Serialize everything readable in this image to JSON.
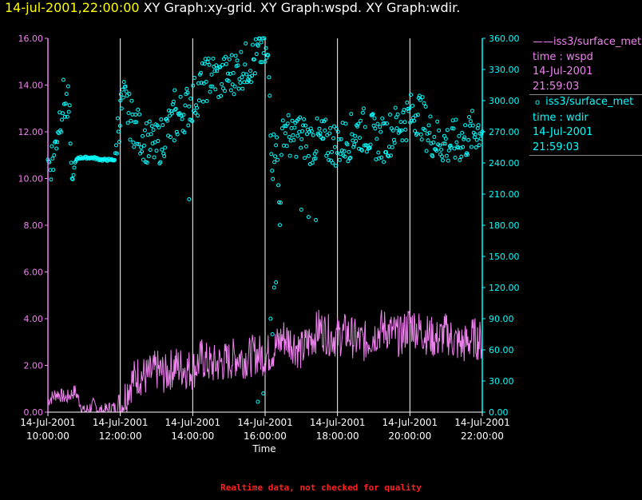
{
  "header": {
    "timestamp": "14-jul-2001,22:00:00",
    "graphs": "XY Graph:xy-grid.  XY Graph:wspd.  XY Graph:wdir."
  },
  "footer": {
    "notice": "Realtime data, not checked for quality"
  },
  "colors": {
    "wspd": "#ee82ee",
    "wdir": "#00ffff",
    "title": "#ffff00",
    "notice": "#ff2020",
    "grid": "#ffffff"
  },
  "legend": [
    {
      "line_marker": "——",
      "source": "iss3/surface_met",
      "var": "time : wspd",
      "date": "14-Jul-2001",
      "time": "21:59:03"
    },
    {
      "line_marker": "o",
      "source": "iss3/surface_met",
      "var": "time : wdir",
      "date": "14-Jul-2001",
      "time": "21:59:03"
    }
  ],
  "chart_data": {
    "type": "line",
    "title": "XY Graph:xy-grid.  XY Graph:wspd.  XY Graph:wdir.",
    "xlabel": "Time",
    "x_range_hours": [
      10,
      22
    ],
    "x_ticks": [
      {
        "hour": 10,
        "date": "14-Jul-2001",
        "time": "10:00:00"
      },
      {
        "hour": 12,
        "date": "14-Jul-2001",
        "time": "12:00:00"
      },
      {
        "hour": 14,
        "date": "14-Jul-2001",
        "time": "14:00:00"
      },
      {
        "hour": 16,
        "date": "14-Jul-2001",
        "time": "16:00:00"
      },
      {
        "hour": 18,
        "date": "14-Jul-2001",
        "time": "18:00:00"
      },
      {
        "hour": 20,
        "date": "14-Jul-2001",
        "time": "20:00:00"
      },
      {
        "hour": 22,
        "date": "14-Jul-2001",
        "time": "22:00:00"
      }
    ],
    "y_left": {
      "name": "wspd",
      "ylim": [
        0,
        16
      ],
      "ticks": [
        "0.00",
        "2.00",
        "4.00",
        "6.00",
        "8.00",
        "10.00",
        "12.00",
        "14.00",
        "16.00"
      ]
    },
    "y_right": {
      "name": "wdir",
      "ylim": [
        0,
        360
      ],
      "ticks": [
        "0.00",
        "30.00",
        "60.00",
        "90.00",
        "120.00",
        "150.00",
        "180.00",
        "210.00",
        "240.00",
        "270.00",
        "300.00",
        "330.00",
        "360.00"
      ]
    },
    "grid": "vertical",
    "series": [
      {
        "name": "iss3/surface_met time : wspd",
        "axis": "left",
        "style": "line",
        "x": [
          10.0,
          10.25,
          10.5,
          10.75,
          11.0,
          11.25,
          11.5,
          11.75,
          12.0,
          12.25,
          12.5,
          12.75,
          13.0,
          13.25,
          13.5,
          13.75,
          14.0,
          14.25,
          14.5,
          14.75,
          15.0,
          15.25,
          15.5,
          15.75,
          16.0,
          16.25,
          16.5,
          16.75,
          17.0,
          17.25,
          17.5,
          17.75,
          18.0,
          18.25,
          18.5,
          18.75,
          19.0,
          19.25,
          19.5,
          19.75,
          20.0,
          20.25,
          20.5,
          20.75,
          21.0,
          21.25,
          21.5,
          21.75,
          22.0
        ],
        "y": [
          0.5,
          0.8,
          0.6,
          0.9,
          0.0,
          0.3,
          0.0,
          0.2,
          0.1,
          1.2,
          1.6,
          1.5,
          1.8,
          1.6,
          2.0,
          1.9,
          1.8,
          2.3,
          2.0,
          2.1,
          2.2,
          2.4,
          2.3,
          2.5,
          2.4,
          2.7,
          3.2,
          3.0,
          2.6,
          3.1,
          3.6,
          3.3,
          3.2,
          3.4,
          3.1,
          3.0,
          3.3,
          3.6,
          3.4,
          3.2,
          3.8,
          3.5,
          3.3,
          3.1,
          3.4,
          3.0,
          2.9,
          3.2,
          3.0
        ],
        "noise": 0.9
      },
      {
        "name": "iss3/surface_met time : wdir",
        "axis": "right",
        "style": "points",
        "x": [
          10.0,
          10.08,
          10.17,
          10.25,
          10.33,
          10.42,
          10.5,
          10.58,
          10.67,
          10.75,
          10.83,
          10.92,
          11.0,
          11.25,
          11.5,
          11.75,
          11.85,
          11.92,
          12.0,
          12.08,
          12.17,
          12.25,
          12.33,
          12.5,
          12.75,
          13.0,
          13.25,
          13.5,
          13.75,
          14.0,
          14.1,
          14.25,
          14.5,
          14.75,
          15.0,
          15.25,
          15.5,
          15.75,
          15.9,
          16.0,
          16.1,
          16.2,
          16.3,
          16.4,
          16.5,
          16.6,
          16.75,
          16.9,
          17.0,
          17.25,
          17.5,
          17.75,
          18.0,
          18.25,
          18.5,
          18.75,
          19.0,
          19.25,
          19.5,
          19.75,
          20.0,
          20.25,
          20.5,
          20.75,
          21.0,
          21.25,
          21.5,
          21.75,
          22.0
        ],
        "y": [
          238,
          244,
          245,
          270,
          285,
          300,
          298,
          290,
          220,
          240,
          245,
          245,
          245,
          245,
          243,
          243,
          243,
          270,
          288,
          300,
          295,
          285,
          280,
          270,
          260,
          255,
          270,
          280,
          290,
          300,
          305,
          315,
          325,
          320,
          325,
          330,
          335,
          340,
          350,
          345,
          330,
          240,
          270,
          190,
          280,
          270,
          260,
          270,
          265,
          260,
          262,
          260,
          258,
          262,
          270,
          272,
          265,
          262,
          270,
          280,
          285,
          290,
          270,
          262,
          258,
          260,
          262,
          270,
          275
        ],
        "noise": 22,
        "outliers": [
          [
            12.0,
            300
          ],
          [
            13.9,
            205
          ],
          [
            15.8,
            10
          ],
          [
            15.95,
            18
          ],
          [
            16.15,
            90
          ],
          [
            16.2,
            75
          ],
          [
            16.25,
            120
          ],
          [
            16.3,
            125
          ],
          [
            17.0,
            195
          ],
          [
            17.2,
            188
          ],
          [
            17.4,
            185
          ],
          [
            13.5,
            310
          ]
        ]
      }
    ]
  }
}
